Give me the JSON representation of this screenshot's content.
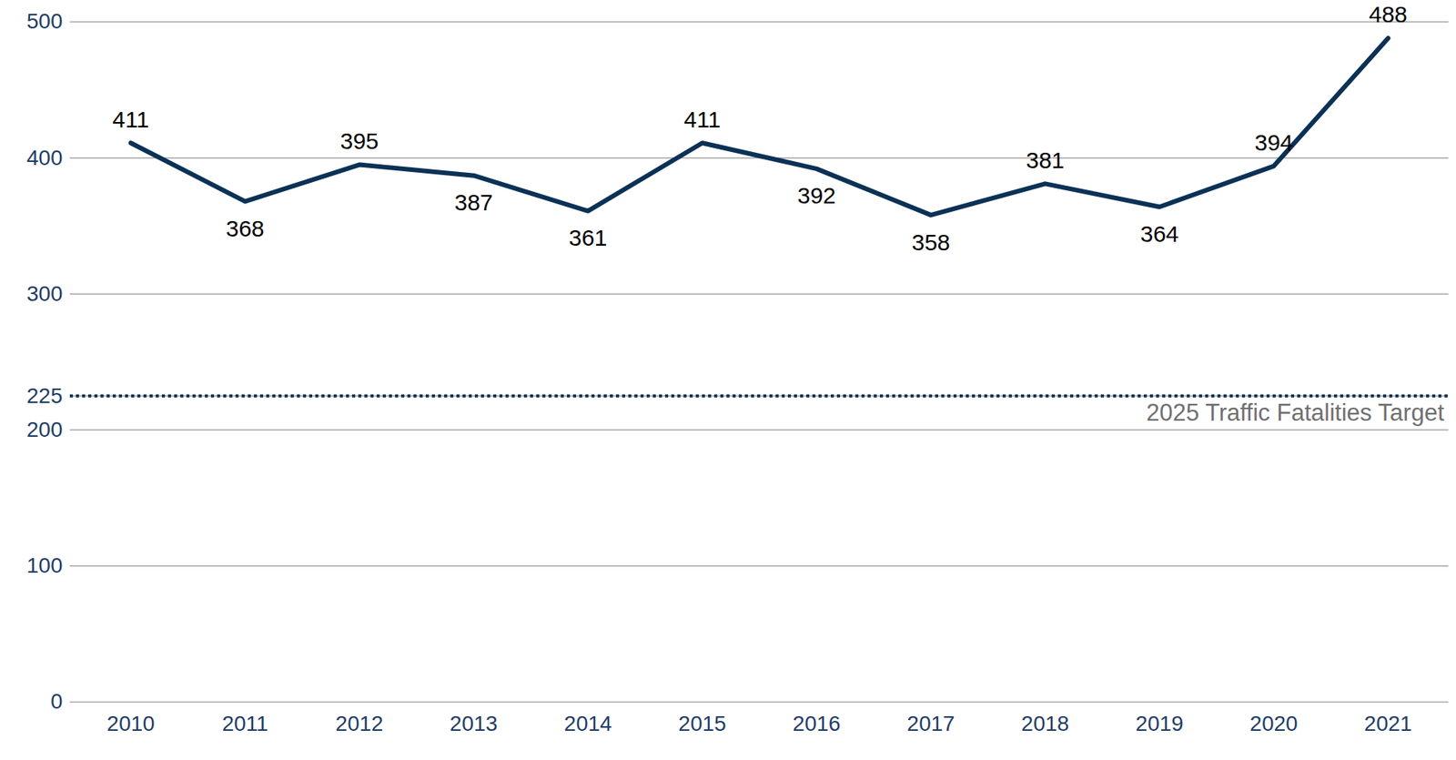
{
  "chart_data": {
    "type": "line",
    "categories": [
      "2010",
      "2011",
      "2012",
      "2013",
      "2014",
      "2015",
      "2016",
      "2017",
      "2018",
      "2019",
      "2020",
      "2021"
    ],
    "values": [
      411,
      368,
      395,
      387,
      361,
      411,
      392,
      358,
      381,
      364,
      394,
      488
    ],
    "color": "#0b3156",
    "ylim": [
      0,
      500
    ],
    "yticks": [
      0,
      100,
      200,
      225,
      300,
      400,
      500
    ],
    "grid": true,
    "data_labels": true,
    "annotations": [
      {
        "type": "hline",
        "value": 225,
        "label": "2025 Traffic Fatalities Target",
        "line_style": "dotted"
      }
    ]
  }
}
